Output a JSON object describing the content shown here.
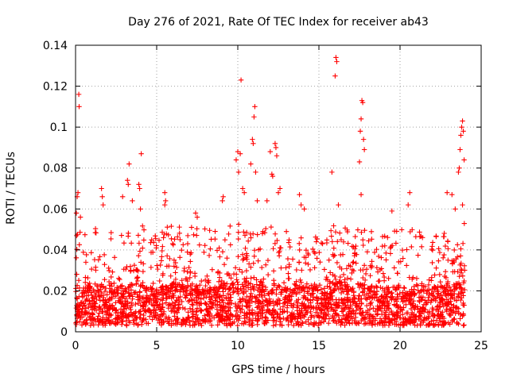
{
  "chart_data": {
    "type": "scatter",
    "title": "Day 276 of 2021, Rate Of TEC Index for receiver ab43",
    "xlabel": "GPS time / hours",
    "ylabel": "ROTI / TECUs",
    "xlim": [
      0,
      25
    ],
    "ylim": [
      0,
      0.14
    ],
    "x_ticks": [
      0,
      5,
      10,
      15,
      20,
      25
    ],
    "x_tick_labels": [
      "0",
      "5",
      "10",
      "15",
      "20",
      "25"
    ],
    "y_ticks": [
      0,
      0.02,
      0.04,
      0.06,
      0.08,
      0.1,
      0.12,
      0.14
    ],
    "y_tick_labels": [
      "0",
      "0.02",
      "0.04",
      "0.06",
      "0.08",
      "0.1",
      "0.12",
      "0.14"
    ],
    "grid": true,
    "marker": "plus",
    "color": "#ff0000",
    "series": [
      {
        "name": "ROTI",
        "points": [
          [
            0.05,
            0.058
          ],
          [
            0.1,
            0.066
          ],
          [
            0.15,
            0.068
          ],
          [
            0.2,
            0.116
          ],
          [
            0.22,
            0.11
          ],
          [
            0.3,
            0.056
          ],
          [
            1.6,
            0.07
          ],
          [
            1.65,
            0.066
          ],
          [
            1.7,
            0.062
          ],
          [
            2.9,
            0.066
          ],
          [
            3.2,
            0.074
          ],
          [
            3.25,
            0.072
          ],
          [
            3.3,
            0.082
          ],
          [
            3.5,
            0.064
          ],
          [
            3.9,
            0.072
          ],
          [
            3.95,
            0.07
          ],
          [
            4.05,
            0.087
          ],
          [
            4.0,
            0.06
          ],
          [
            5.5,
            0.068
          ],
          [
            5.55,
            0.064
          ],
          [
            5.5,
            0.062
          ],
          [
            7.4,
            0.058
          ],
          [
            7.5,
            0.056
          ],
          [
            9.1,
            0.066
          ],
          [
            9.05,
            0.064
          ],
          [
            9.9,
            0.084
          ],
          [
            10.0,
            0.088
          ],
          [
            10.05,
            0.078
          ],
          [
            10.15,
            0.087
          ],
          [
            10.2,
            0.123
          ],
          [
            10.3,
            0.07
          ],
          [
            10.4,
            0.068
          ],
          [
            10.8,
            0.082
          ],
          [
            10.9,
            0.094
          ],
          [
            10.95,
            0.092
          ],
          [
            11.0,
            0.105
          ],
          [
            11.05,
            0.11
          ],
          [
            11.1,
            0.078
          ],
          [
            11.2,
            0.064
          ],
          [
            11.8,
            0.064
          ],
          [
            12.0,
            0.088
          ],
          [
            12.1,
            0.077
          ],
          [
            12.15,
            0.076
          ],
          [
            12.3,
            0.092
          ],
          [
            12.35,
            0.09
          ],
          [
            12.4,
            0.086
          ],
          [
            12.5,
            0.068
          ],
          [
            12.6,
            0.07
          ],
          [
            13.8,
            0.067
          ],
          [
            13.9,
            0.062
          ],
          [
            14.1,
            0.06
          ],
          [
            15.8,
            0.078
          ],
          [
            16.0,
            0.125
          ],
          [
            16.05,
            0.134
          ],
          [
            16.1,
            0.132
          ],
          [
            16.2,
            0.062
          ],
          [
            17.5,
            0.083
          ],
          [
            17.55,
            0.098
          ],
          [
            17.6,
            0.104
          ],
          [
            17.65,
            0.113
          ],
          [
            17.7,
            0.112
          ],
          [
            17.75,
            0.094
          ],
          [
            17.8,
            0.089
          ],
          [
            17.6,
            0.067
          ],
          [
            19.5,
            0.059
          ],
          [
            20.6,
            0.068
          ],
          [
            20.5,
            0.062
          ],
          [
            22.9,
            0.068
          ],
          [
            23.2,
            0.067
          ],
          [
            23.4,
            0.06
          ],
          [
            23.6,
            0.078
          ],
          [
            23.65,
            0.08
          ],
          [
            23.7,
            0.089
          ],
          [
            23.75,
            0.096
          ],
          [
            23.8,
            0.1
          ],
          [
            23.85,
            0.103
          ],
          [
            23.9,
            0.098
          ],
          [
            23.95,
            0.084
          ],
          [
            23.85,
            0.062
          ]
        ]
      }
    ],
    "envelope": {
      "x": [
        0,
        0.5,
        1,
        1.5,
        2,
        2.5,
        3,
        3.5,
        4,
        4.5,
        5,
        5.5,
        6,
        6.5,
        7,
        7.5,
        8,
        8.5,
        9,
        9.5,
        10,
        10.5,
        11,
        11.5,
        12,
        12.5,
        13,
        13.5,
        14,
        14.5,
        15,
        15.5,
        16,
        16.5,
        17,
        17.5,
        18,
        18.5,
        19,
        19.5,
        20,
        20.5,
        21,
        21.5,
        22,
        22.5,
        23,
        23.5,
        24
      ],
      "base": [
        0.012,
        0.012,
        0.011,
        0.013,
        0.012,
        0.011,
        0.012,
        0.013,
        0.012,
        0.011,
        0.012,
        0.012,
        0.013,
        0.012,
        0.011,
        0.012,
        0.012,
        0.011,
        0.012,
        0.013,
        0.014,
        0.014,
        0.013,
        0.012,
        0.013,
        0.012,
        0.011,
        0.011,
        0.012,
        0.012,
        0.011,
        0.012,
        0.014,
        0.014,
        0.012,
        0.013,
        0.012,
        0.012,
        0.011,
        0.011,
        0.012,
        0.011,
        0.011,
        0.012,
        0.011,
        0.012,
        0.012,
        0.013,
        0.014
      ],
      "spread": [
        0.022,
        0.018,
        0.02,
        0.026,
        0.024,
        0.018,
        0.024,
        0.028,
        0.028,
        0.02,
        0.022,
        0.024,
        0.028,
        0.024,
        0.022,
        0.024,
        0.022,
        0.02,
        0.022,
        0.026,
        0.03,
        0.028,
        0.03,
        0.028,
        0.03,
        0.026,
        0.018,
        0.016,
        0.024,
        0.022,
        0.018,
        0.022,
        0.026,
        0.024,
        0.026,
        0.03,
        0.026,
        0.024,
        0.022,
        0.02,
        0.02,
        0.022,
        0.018,
        0.02,
        0.02,
        0.022,
        0.024,
        0.03,
        0.028
      ]
    }
  }
}
